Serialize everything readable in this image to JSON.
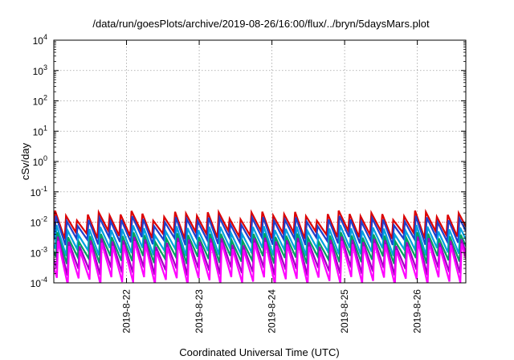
{
  "chart_data": {
    "type": "line",
    "title": "/data/run/goesPlots/archive/2019-08-26/16:00/flux/../bryn/5daysMars.plot",
    "xlabel": "Coordinated Universal Time (UTC)",
    "ylabel": "cSv/day",
    "x_range": [
      "2019-08-21T00:00",
      "2019-08-26T16:00"
    ],
    "x_tick_labels": [
      {
        "date": "2019-08-22T00:00",
        "label": "2019-8-22"
      },
      {
        "date": "2019-08-23T00:00",
        "label": "2019-8-23"
      },
      {
        "date": "2019-08-24T00:00",
        "label": "2019-8-24"
      },
      {
        "date": "2019-08-25T00:00",
        "label": "2019-8-25"
      },
      {
        "date": "2019-08-26T00:00",
        "label": "2019-8-26"
      }
    ],
    "y_scale": "log",
    "ylim": [
      0.0001,
      10000
    ],
    "y_ticks": [
      {
        "base": "10",
        "exp": "-4",
        "value": 0.0001
      },
      {
        "base": "10",
        "exp": "-3",
        "value": 0.001
      },
      {
        "base": "10",
        "exp": "-2",
        "value": 0.01
      },
      {
        "base": "10",
        "exp": "-1",
        "value": 0.1
      },
      {
        "base": "10",
        "exp": "0",
        "value": 1
      },
      {
        "base": "10",
        "exp": "1",
        "value": 10
      },
      {
        "base": "10",
        "exp": "2",
        "value": 100
      },
      {
        "base": "10",
        "exp": "3",
        "value": 1000
      },
      {
        "base": "10",
        "exp": "4",
        "value": 10000
      }
    ],
    "grid": true,
    "reference_line": {
      "value": 0.01,
      "color": "#ff0000"
    },
    "sawtooth_period_hours": 3.6,
    "series": [
      {
        "color": "#dd0000",
        "peak": 0.018,
        "trough": 0.004,
        "phase_hours": 0.0
      },
      {
        "color": "#1f3fcc",
        "peak": 0.012,
        "trough": 0.0025,
        "phase_hours": 0.25
      },
      {
        "color": "#00a0e0",
        "peak": 0.006,
        "trough": 0.0011,
        "phase_hours": 0.5
      },
      {
        "color": "#00a060",
        "peak": 0.0035,
        "trough": 0.0006,
        "phase_hours": 0.7
      },
      {
        "color": "#a000c0",
        "peak": 0.0025,
        "trough": 0.00025,
        "phase_hours": 0.9
      },
      {
        "color": "#ff00ff",
        "peak": 0.0018,
        "trough": 0.00012,
        "phase_hours": 1.0
      }
    ]
  }
}
